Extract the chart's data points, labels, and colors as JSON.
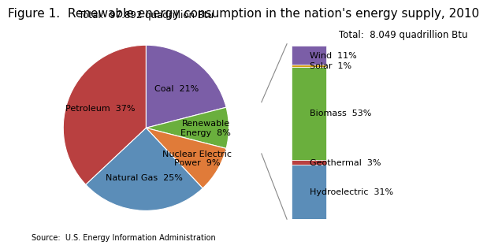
{
  "title": "Figure 1.  Renewable energy consumption in the nation's energy supply, 2010",
  "pie_total_label": "Total:  97.892 quadrillion Btu",
  "bar_total_label": "Total:  8.049 quadrillion Btu",
  "source_label": "Source:  U.S. Energy Information Administration",
  "pie_labels": [
    "Coal  21%",
    "Renewable\nEnergy  8%",
    "Nuclear Electric\nPower  9%",
    "Natural Gas  25%",
    "Petroleum  37%"
  ],
  "pie_sizes": [
    21,
    8,
    9,
    25,
    37
  ],
  "pie_colors": [
    "#7B5EA7",
    "#6AAF3D",
    "#E07B39",
    "#5B8DB8",
    "#B94040"
  ],
  "bar_labels": [
    "Wind  11%",
    "Solar  1%",
    "Biomass  53%",
    "Geothermal  3%",
    "Hydroelectric  31%"
  ],
  "bar_sizes": [
    11,
    1,
    53,
    3,
    31
  ],
  "bar_colors": [
    "#7B5EA7",
    "#D4A017",
    "#6AAF3D",
    "#B94040",
    "#5B8DB8"
  ],
  "background_color": "#FFFFFF",
  "font_color": "#000000"
}
